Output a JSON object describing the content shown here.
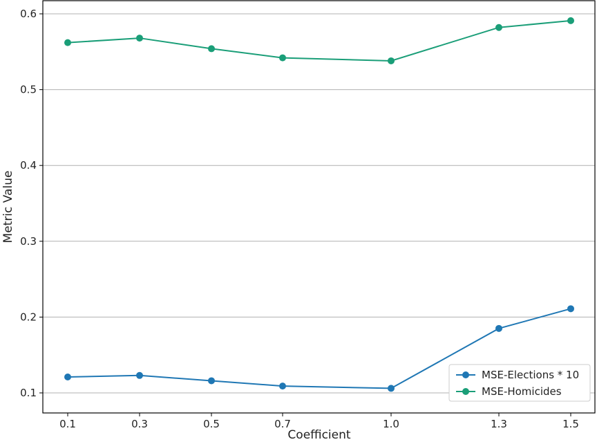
{
  "chart_data": {
    "type": "line",
    "xlabel": "Coefficient",
    "ylabel": "Metric Value",
    "categories": [
      "0.1",
      "0.3",
      "0.5",
      "0.7",
      "1.0",
      "1.3",
      "1.5"
    ],
    "ylim": [
      0.09,
      0.605
    ],
    "yticks": [
      "0.1",
      "0.2",
      "0.3",
      "0.4",
      "0.5",
      "0.6"
    ],
    "grid": "horizontal",
    "legend": "bottom-right",
    "series": [
      {
        "name": "MSE-Elections * 10",
        "color": "#1f77b4",
        "values": [
          0.121,
          0.123,
          0.116,
          0.109,
          0.106,
          0.185,
          0.211
        ]
      },
      {
        "name": "MSE-Homicides",
        "color": "#1a9e78",
        "values": [
          0.562,
          0.568,
          0.554,
          0.542,
          0.538,
          0.582,
          0.591
        ]
      }
    ]
  }
}
